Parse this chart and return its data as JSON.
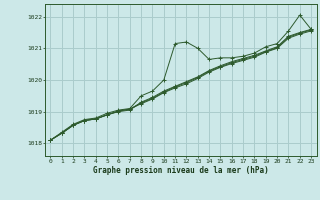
{
  "title": "Graphe pression niveau de la mer (hPa)",
  "bg_color": "#cce8e8",
  "grid_color": "#aacccc",
  "line_color": "#2d5a2d",
  "text_color": "#1a3a1a",
  "xlim": [
    -0.5,
    23.5
  ],
  "ylim": [
    1017.6,
    1022.4
  ],
  "yticks": [
    1018,
    1019,
    1020,
    1021,
    1022
  ],
  "xticks": [
    0,
    1,
    2,
    3,
    4,
    5,
    6,
    7,
    8,
    9,
    10,
    11,
    12,
    13,
    14,
    15,
    16,
    17,
    18,
    19,
    20,
    21,
    22,
    23
  ],
  "series": [
    [
      1018.1,
      1018.35,
      1018.6,
      1018.75,
      1018.8,
      1018.95,
      1019.05,
      1019.1,
      1019.5,
      1019.65,
      1020.0,
      1021.15,
      1021.2,
      1021.0,
      1020.65,
      1020.7,
      1020.7,
      1020.75,
      1020.85,
      1021.05,
      1021.15,
      1021.55,
      1022.05,
      1021.6
    ],
    [
      1018.1,
      1018.32,
      1018.57,
      1018.72,
      1018.77,
      1018.9,
      1019.0,
      1019.05,
      1019.3,
      1019.45,
      1019.65,
      1019.8,
      1019.95,
      1020.1,
      1020.3,
      1020.45,
      1020.58,
      1020.68,
      1020.78,
      1020.92,
      1021.05,
      1021.38,
      1021.5,
      1021.6
    ],
    [
      1018.1,
      1018.32,
      1018.57,
      1018.72,
      1018.77,
      1018.9,
      1019.02,
      1019.08,
      1019.28,
      1019.42,
      1019.62,
      1019.78,
      1019.92,
      1020.08,
      1020.28,
      1020.42,
      1020.55,
      1020.65,
      1020.75,
      1020.9,
      1021.02,
      1021.35,
      1021.48,
      1021.58
    ],
    [
      1018.1,
      1018.32,
      1018.57,
      1018.72,
      1018.77,
      1018.9,
      1019.02,
      1019.08,
      1019.25,
      1019.4,
      1019.6,
      1019.75,
      1019.88,
      1020.05,
      1020.25,
      1020.4,
      1020.52,
      1020.62,
      1020.72,
      1020.88,
      1021.0,
      1021.32,
      1021.45,
      1021.55
    ]
  ]
}
